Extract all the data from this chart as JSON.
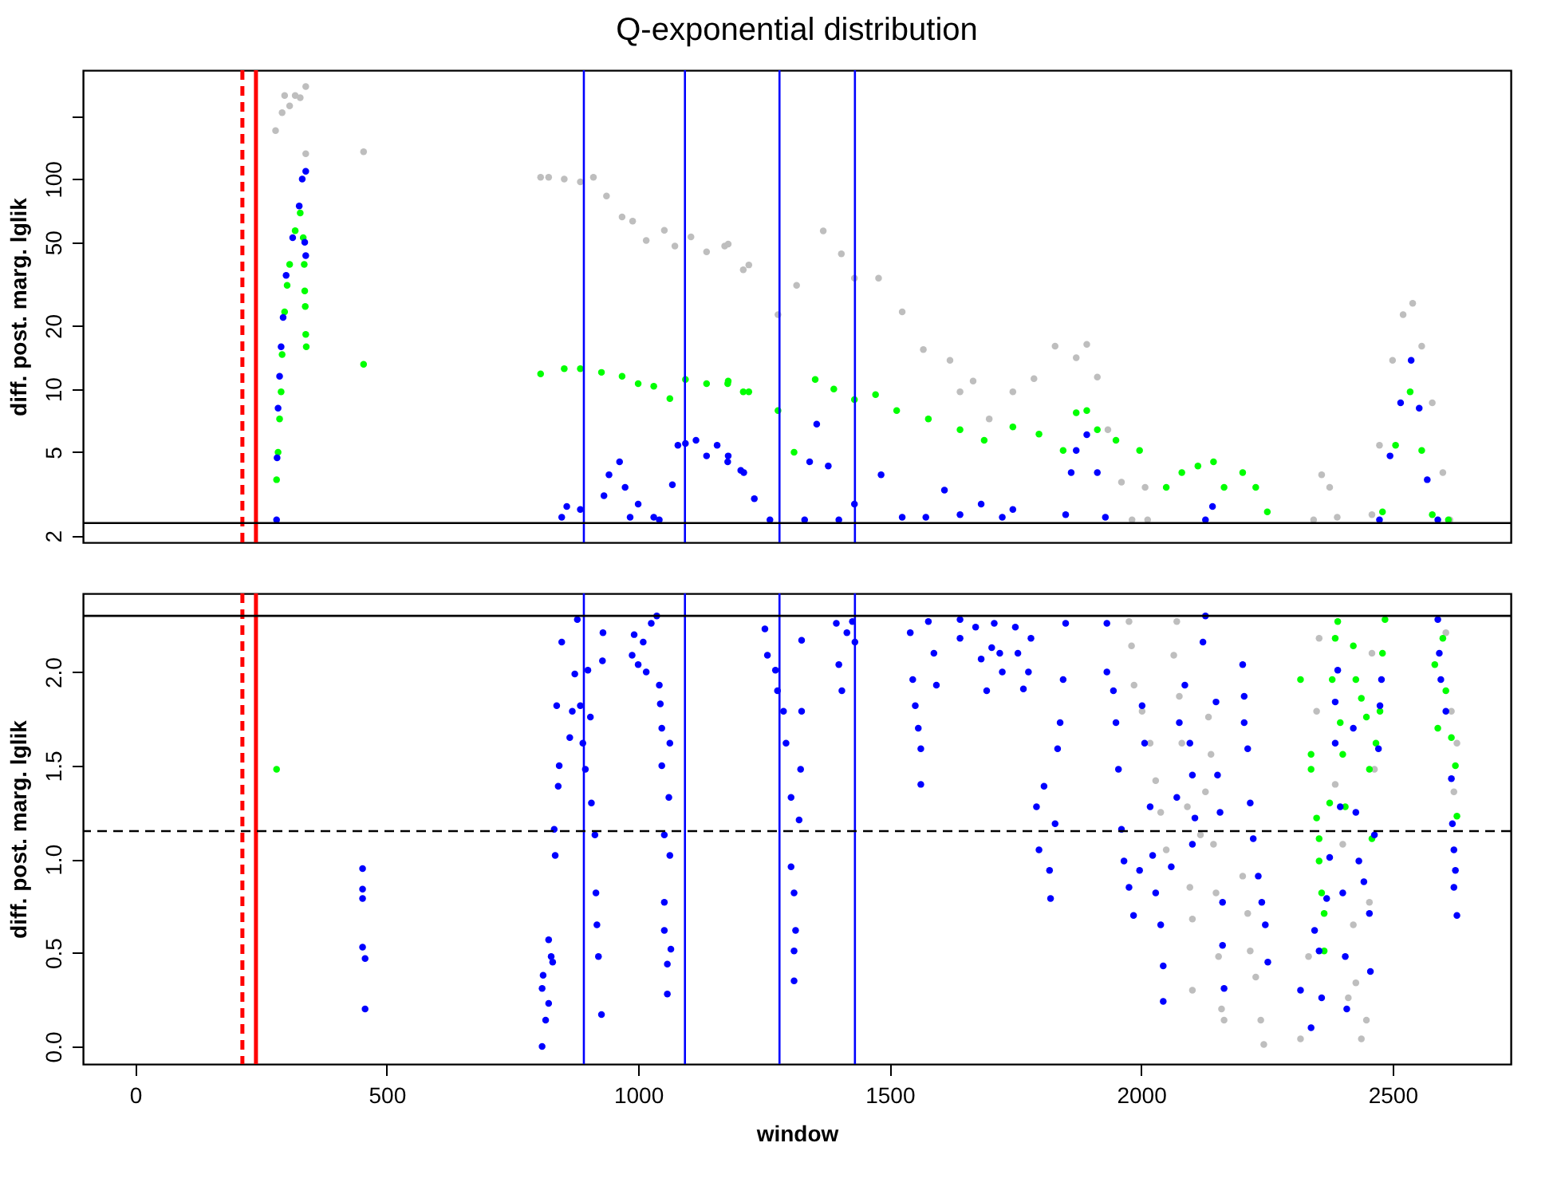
{
  "chart_data": [
    {
      "type": "scatter",
      "title": "Q-exponential distribution",
      "ylabel": "diff. post. marg. lglik",
      "log": true,
      "xlim": [
        -104,
        2735
      ],
      "ylim": [
        1.86,
        330
      ],
      "yticks": [
        2,
        5,
        10,
        20,
        50,
        100,
        {
          "value": 200,
          "label": null
        }
      ],
      "tick_labels": "y",
      "grid": false,
      "legend": false,
      "marker": "circle",
      "series": [
        {
          "color": "#bebebe",
          "x": [
            279,
            292,
            297,
            307,
            318,
            328,
            339,
            339,
            454,
            806,
            822,
            853,
            885,
            911,
            937,
            968,
            989,
            1016,
            1052,
            1073,
            1105,
            1136,
            1172,
            1209,
            1179,
            1220,
            1278,
            1315,
            1368,
            1404,
            1430,
            1478,
            1525,
            1567,
            1620,
            1640,
            1666,
            1698,
            1745,
            1787,
            1829,
            1871,
            1892,
            1913,
            1934,
            1961,
            1982,
            2008,
            2013,
            2343,
            2359,
            2375,
            2390,
            2459,
            2474,
            2500,
            2521,
            2540,
            2558,
            2579,
            2600,
            2614
          ],
          "values": [
            170,
            207,
            250,
            223,
            250,
            244,
            276,
            132,
            135,
            102,
            102,
            100,
            97,
            102,
            83,
            66,
            63,
            51,
            57,
            48,
            53,
            45,
            48,
            37,
            49,
            39,
            22.6,
            31.2,
            56.6,
            44,
            33.7,
            33.7,
            23.3,
            15.4,
            13.7,
            9.7,
            10.9,
            7.2,
            9.7,
            11.2,
            16,
            14.1,
            16.3,
            11.4,
            6.4,
            3.6,
            2.38,
            3.4,
            2.38,
            2.38,
            3.9,
            3.4,
            2.45,
            2.52,
            5.4,
            13.7,
            22.6,
            25.6,
            16,
            8.6,
            4.0,
            2.38
          ]
        },
        {
          "color": "#00ff00",
          "x": [
            281,
            284,
            287,
            290,
            292,
            297,
            302,
            307,
            318,
            328,
            334,
            336,
            337,
            338,
            339,
            340,
            454,
            806,
            853,
            885,
            927,
            968,
            1000,
            1031,
            1063,
            1094,
            1136,
            1178,
            1209,
            1179,
            1220,
            1278,
            1310,
            1352,
            1389,
            1430,
            1472,
            1514,
            1577,
            1640,
            1688,
            1745,
            1797,
            1845,
            1871,
            1892,
            1913,
            1950,
            1997,
            2050,
            2081,
            2113,
            2144,
            2165,
            2202,
            2228,
            2251,
            2480,
            2506,
            2535,
            2558,
            2579,
            2611
          ],
          "values": [
            3.7,
            5.0,
            7.2,
            9.7,
            14.6,
            23.3,
            31.2,
            39.2,
            56.7,
            69,
            52.6,
            39.2,
            29.3,
            24.7,
            18.2,
            15.9,
            13.1,
            11.8,
            12.5,
            12.5,
            12,
            11.5,
            10.6,
            10.3,
            9,
            11.1,
            10.6,
            10.6,
            9.7,
            10.9,
            9.7,
            7.9,
            5.0,
            11.1,
            10,
            8.9,
            9.4,
            7.9,
            7.2,
            6.4,
            5.7,
            6.6,
            6.1,
            5.1,
            7.7,
            7.9,
            6.4,
            5.7,
            5.1,
            3.4,
            4.0,
            4.3,
            4.5,
            3.4,
            4.0,
            3.4,
            2.6,
            2.6,
            5.4,
            9.7,
            5.1,
            2.52,
            2.38
          ]
        },
        {
          "color": "#0000ff",
          "x": [
            281,
            282,
            284,
            287,
            290,
            294,
            300,
            313,
            326,
            332,
            339,
            337,
            339,
            848,
            858,
            885,
            932,
            942,
            963,
            974,
            984,
            1000,
            1031,
            1042,
            1068,
            1079,
            1094,
            1115,
            1136,
            1157,
            1178,
            1204,
            1179,
            1210,
            1231,
            1262,
            1331,
            1341,
            1355,
            1378,
            1399,
            1430,
            1483,
            1525,
            1572,
            1609,
            1640,
            1682,
            1724,
            1745,
            1850,
            1861,
            1871,
            1892,
            1913,
            1929,
            2128,
            2142,
            2474,
            2495,
            2516,
            2537,
            2553,
            2569,
            2590
          ],
          "values": [
            2.38,
            4.7,
            8.1,
            11.5,
            15.9,
            21.9,
            34.8,
            52.6,
            74.5,
            100,
            109,
            50,
            43.2,
            2.45,
            2.76,
            2.67,
            3.1,
            3.9,
            4.5,
            3.4,
            2.45,
            2.83,
            2.45,
            2.38,
            3.5,
            5.4,
            5.5,
            5.7,
            4.8,
            5.4,
            4.5,
            4.1,
            4.8,
            4.0,
            3.0,
            2.38,
            2.38,
            4.5,
            6.8,
            4.3,
            2.38,
            2.83,
            3.9,
            2.45,
            2.45,
            3.3,
            2.52,
            2.83,
            2.45,
            2.67,
            2.52,
            4.0,
            5.1,
            6.06,
            4.0,
            2.45,
            2.38,
            2.76,
            2.38,
            4.8,
            8.6,
            13.7,
            8.1,
            3.7,
            2.38
          ]
        }
      ],
      "ref_lines": [
        {
          "axis": "x",
          "value": 213,
          "color": "#ff0000",
          "line_style": "dashed"
        },
        {
          "axis": "x",
          "value": 240,
          "color": "#ff0000",
          "line_style": "solid"
        },
        {
          "axis": "x",
          "value": 892,
          "color": "#0000ff",
          "line_style": "solid"
        },
        {
          "axis": "x",
          "value": 1093,
          "color": "#0000ff",
          "line_style": "solid"
        },
        {
          "axis": "x",
          "value": 1281,
          "color": "#0000ff",
          "line_style": "solid"
        },
        {
          "axis": "x",
          "value": 1431,
          "color": "#0000ff",
          "line_style": "solid"
        },
        {
          "axis": "y",
          "value": 2.3,
          "color": "#000000",
          "line_style": "solid"
        }
      ]
    },
    {
      "type": "scatter",
      "xlabel": "window",
      "ylabel": "diff. post. marg. lglik",
      "xlim": [
        -104,
        2735
      ],
      "xticks": [
        0,
        500,
        1000,
        1500,
        2000,
        2500
      ],
      "ylim": [
        -0.094,
        2.42
      ],
      "yticks": [
        {
          "value": 0,
          "label": "0.0"
        },
        0.5,
        {
          "value": 1,
          "label": "1.0"
        },
        1.5,
        {
          "value": 2,
          "label": "2.0"
        }
      ],
      "grid": false,
      "legend": false,
      "marker": "circle",
      "series": [
        {
          "color": "#bebebe",
          "x": [
            1976,
            1981,
            1986,
            2002,
            2018,
            2029,
            2039,
            2050,
            2065,
            2071,
            2076,
            2081,
            2092,
            2097,
            2102,
            2102,
            2118,
            2128,
            2134,
            2139,
            2144,
            2149,
            2154,
            2160,
            2165,
            2202,
            2212,
            2217,
            2228,
            2238,
            2244,
            2317,
            2333,
            2349,
            2354,
            2386,
            2401,
            2412,
            2422,
            2427,
            2438,
            2448,
            2454,
            2459,
            2464,
            2606,
            2617,
            2628,
            2622
          ],
          "values": [
            2.27,
            2.14,
            1.93,
            1.79,
            1.62,
            1.42,
            1.25,
            1.05,
            2.09,
            2.27,
            1.87,
            1.62,
            1.28,
            0.85,
            0.68,
            0.3,
            1.13,
            1.36,
            1.76,
            1.56,
            1.08,
            0.82,
            0.48,
            0.2,
            0.14,
            0.91,
            0.71,
            0.51,
            0.37,
            0.14,
            0.01,
            0.04,
            0.48,
            1.79,
            2.18,
            1.4,
            1.08,
            0.26,
            0.65,
            0.34,
            0.04,
            0.14,
            0.77,
            2.1,
            1.48,
            2.21,
            1.79,
            1.62,
            1.36
          ]
        },
        {
          "color": "#00ff00",
          "x": [
            281,
            2317,
            2338,
            2338,
            2349,
            2354,
            2354,
            2359,
            2364,
            2364,
            2375,
            2380,
            2386,
            2391,
            2396,
            2401,
            2406,
            2422,
            2427,
            2438,
            2448,
            2454,
            2459,
            2467,
            2475,
            2480,
            2485,
            2584,
            2590,
            2600,
            2606,
            2617,
            2625,
            2628
          ],
          "values": [
            1.48,
            1.96,
            1.56,
            1.48,
            1.22,
            1.11,
            0.99,
            0.82,
            0.71,
            0.51,
            1.3,
            1.96,
            2.18,
            2.27,
            1.73,
            1.56,
            1.28,
            2.14,
            1.96,
            1.86,
            1.76,
            1.48,
            1.11,
            1.62,
            1.79,
            2.1,
            2.28,
            2.04,
            1.7,
            2.18,
            1.9,
            1.65,
            1.5,
            1.23
          ]
        },
        {
          "color": "#0000ff",
          "x": [
            452,
            452,
            452,
            452,
            457,
            457,
            809,
            809,
            811,
            816,
            822,
            822,
            827,
            830,
            833,
            835,
            838,
            841,
            843,
            848,
            864,
            869,
            879,
            874,
            885,
            890,
            895,
            900,
            905,
            907,
            914,
            916,
            918,
            921,
            927,
            929,
            930,
            988,
            992,
            1000,
            1010,
            1016,
            1026,
            1037,
            1042,
            1044,
            1047,
            1047,
            1052,
            1052,
            1052,
            1058,
            1058,
            1061,
            1063,
            1063,
            1065,
            1252,
            1257,
            1273,
            1277,
            1289,
            1294,
            1304,
            1304,
            1310,
            1313,
            1310,
            1310,
            1320,
            1323,
            1325,
            1325,
            1394,
            1399,
            1405,
            1415,
            1426,
            1431,
            1541,
            1546,
            1551,
            1557,
            1562,
            1562,
            1577,
            1588,
            1593,
            1640,
            1640,
            1671,
            1682,
            1693,
            1703,
            1708,
            1719,
            1724,
            1750,
            1755,
            1766,
            1776,
            1781,
            1792,
            1797,
            1807,
            1818,
            1820,
            1829,
            1834,
            1839,
            1845,
            1850,
            1932,
            1932,
            1945,
            1950,
            1955,
            1961,
            1966,
            1976,
            1985,
            1997,
            2002,
            2007,
            2018,
            2023,
            2029,
            2039,
            2044,
            2044,
            2060,
            2071,
            2076,
            2087,
            2097,
            2102,
            2107,
            2102,
            2123,
            2128,
            2149,
            2152,
            2157,
            2162,
            2162,
            2165,
            2202,
            2205,
            2205,
            2212,
            2217,
            2223,
            2233,
            2240,
            2247,
            2252,
            2317,
            2338,
            2345,
            2354,
            2359,
            2369,
            2375,
            2386,
            2386,
            2391,
            2396,
            2401,
            2406,
            2409,
            2422,
            2427,
            2433,
            2443,
            2454,
            2456,
            2464,
            2472,
            2478,
            2475,
            2590,
            2593,
            2596,
            2606,
            2617,
            2619,
            2622,
            2625,
            2622,
            2628
          ],
          "values": [
            0.95,
            0.84,
            0.79,
            0.53,
            0.47,
            0.2,
            0.0,
            0.31,
            0.38,
            0.14,
            0.23,
            0.57,
            0.48,
            0.45,
            1.16,
            1.02,
            1.82,
            1.39,
            1.5,
            2.16,
            1.65,
            1.79,
            2.28,
            1.99,
            1.82,
            1.62,
            1.48,
            2.01,
            1.76,
            1.3,
            1.13,
            0.82,
            0.65,
            0.48,
            0.17,
            2.06,
            2.21,
            2.09,
            2.2,
            2.04,
            2.16,
            2.0,
            2.26,
            2.3,
            1.93,
            1.83,
            1.7,
            1.5,
            1.13,
            0.77,
            0.62,
            0.44,
            0.28,
            1.33,
            1.62,
            1.02,
            0.52,
            2.23,
            2.09,
            2.01,
            1.9,
            1.79,
            1.62,
            1.33,
            0.96,
            0.82,
            0.62,
            0.51,
            0.35,
            1.21,
            1.48,
            1.79,
            2.17,
            2.26,
            2.04,
            1.9,
            2.21,
            2.27,
            2.16,
            2.21,
            1.96,
            1.82,
            1.7,
            1.59,
            1.4,
            2.27,
            2.1,
            1.93,
            2.28,
            2.18,
            2.24,
            2.07,
            1.9,
            2.13,
            2.26,
            2.1,
            2.0,
            2.24,
            2.1,
            1.91,
            2.0,
            2.18,
            1.28,
            1.05,
            1.39,
            0.94,
            0.79,
            1.19,
            1.59,
            1.73,
            1.96,
            2.26,
            2.26,
            2.0,
            1.9,
            1.73,
            1.48,
            1.16,
            0.99,
            0.85,
            0.7,
            0.94,
            1.82,
            1.62,
            1.28,
            1.02,
            0.82,
            0.65,
            0.43,
            0.24,
            0.96,
            1.33,
            1.73,
            1.93,
            1.62,
            1.45,
            1.22,
            1.08,
            2.16,
            2.3,
            1.84,
            1.45,
            1.25,
            0.77,
            0.54,
            0.31,
            2.04,
            1.87,
            1.73,
            1.59,
            1.3,
            1.11,
            0.91,
            0.77,
            0.65,
            0.45,
            0.3,
            0.1,
            0.62,
            0.51,
            0.26,
            0.79,
            1.01,
            1.62,
            1.84,
            2.01,
            1.28,
            0.82,
            0.48,
            0.2,
            1.7,
            1.25,
            0.99,
            0.88,
            0.71,
            0.4,
            1.13,
            1.59,
            1.96,
            1.82,
            2.28,
            2.1,
            1.96,
            1.79,
            1.43,
            1.19,
            1.05,
            0.94,
            0.85,
            0.7
          ]
        }
      ],
      "ref_lines": [
        {
          "axis": "x",
          "value": 213,
          "color": "#ff0000",
          "line_style": "dashed"
        },
        {
          "axis": "x",
          "value": 240,
          "color": "#ff0000",
          "line_style": "solid"
        },
        {
          "axis": "x",
          "value": 892,
          "color": "#0000ff",
          "line_style": "solid"
        },
        {
          "axis": "x",
          "value": 1093,
          "color": "#0000ff",
          "line_style": "solid"
        },
        {
          "axis": "x",
          "value": 1281,
          "color": "#0000ff",
          "line_style": "solid"
        },
        {
          "axis": "x",
          "value": 1431,
          "color": "#0000ff",
          "line_style": "solid"
        },
        {
          "axis": "y",
          "value": 2.3,
          "color": "#000000",
          "line_style": "solid"
        },
        {
          "axis": "y",
          "value": 1.15,
          "color": "#000000",
          "line_style": "dashed"
        }
      ]
    }
  ]
}
